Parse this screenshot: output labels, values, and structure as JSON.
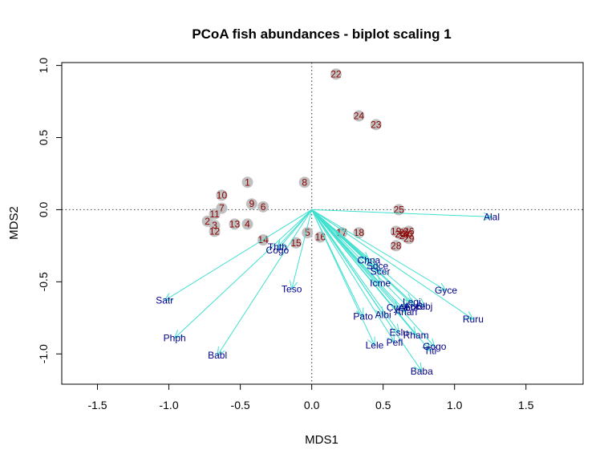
{
  "chart_data": {
    "type": "scatter",
    "title": "PCoA fish abundances - biplot scaling 1",
    "xlabel": "MDS1",
    "ylabel": "MDS2",
    "xlim": [
      -1.75,
      1.9
    ],
    "ylim": [
      -1.21,
      1.02
    ],
    "xticks": [
      "-1.5",
      "-1.0",
      "-0.5",
      "0.0",
      "0.5",
      "1.0",
      "1.5"
    ],
    "yticks": [
      "-1.0",
      "-0.5",
      "0.0",
      "0.5",
      "1.0"
    ],
    "reference_lines": {
      "x": 0,
      "y": 0,
      "style": "dotted"
    },
    "colors": {
      "site_point": "#c0c0c0",
      "site_label": "#8b0000",
      "arrow": "#40e0d0",
      "species_label": "#00008b"
    },
    "sites": [
      {
        "label": "1",
        "x": -0.45,
        "y": 0.19
      },
      {
        "label": "2",
        "x": -0.73,
        "y": -0.08
      },
      {
        "label": "3",
        "x": -0.68,
        "y": -0.11
      },
      {
        "label": "4",
        "x": -0.45,
        "y": -0.1
      },
      {
        "label": "5",
        "x": -0.03,
        "y": -0.16
      },
      {
        "label": "6",
        "x": -0.34,
        "y": 0.02
      },
      {
        "label": "7",
        "x": -0.63,
        "y": 0.01
      },
      {
        "label": "8",
        "x": -0.05,
        "y": 0.19
      },
      {
        "label": "9",
        "x": -0.42,
        "y": 0.04
      },
      {
        "label": "10",
        "x": -0.63,
        "y": 0.1
      },
      {
        "label": "11",
        "x": -0.68,
        "y": -0.03
      },
      {
        "label": "12",
        "x": -0.68,
        "y": -0.15
      },
      {
        "label": "13",
        "x": -0.54,
        "y": -0.1
      },
      {
        "label": "14",
        "x": -0.34,
        "y": -0.21
      },
      {
        "label": "15",
        "x": -0.11,
        "y": -0.23
      },
      {
        "label": "16",
        "x": 0.06,
        "y": -0.19
      },
      {
        "label": "17",
        "x": 0.21,
        "y": -0.16
      },
      {
        "label": "18",
        "x": 0.33,
        "y": -0.16
      },
      {
        "label": "19",
        "x": 0.59,
        "y": -0.15
      },
      {
        "label": "20",
        "x": 0.62,
        "y": -0.17
      },
      {
        "label": "21",
        "x": 0.65,
        "y": -0.16
      },
      {
        "label": "22",
        "x": 0.17,
        "y": 0.94
      },
      {
        "label": "23",
        "x": 0.45,
        "y": 0.59
      },
      {
        "label": "24",
        "x": 0.33,
        "y": 0.65
      },
      {
        "label": "25",
        "x": 0.61,
        "y": 0.0
      },
      {
        "label": "26",
        "x": 0.68,
        "y": -0.15
      },
      {
        "label": "27",
        "x": 0.65,
        "y": -0.18
      },
      {
        "label": "28",
        "x": 0.59,
        "y": -0.25
      },
      {
        "label": "29",
        "x": 0.68,
        "y": -0.2
      },
      {
        "label": "30",
        "x": 0.67,
        "y": -0.17
      }
    ],
    "species": [
      {
        "label": "Cogo",
        "x": -0.24,
        "y": -0.28
      },
      {
        "label": "Satr",
        "x": -1.03,
        "y": -0.63
      },
      {
        "label": "Phph",
        "x": -0.96,
        "y": -0.89
      },
      {
        "label": "Babl",
        "x": -0.66,
        "y": -1.01
      },
      {
        "label": "Thth",
        "x": -0.24,
        "y": -0.26
      },
      {
        "label": "Teso",
        "x": -0.14,
        "y": -0.55
      },
      {
        "label": "Chna",
        "x": 0.4,
        "y": -0.35
      },
      {
        "label": "Pato",
        "x": 0.36,
        "y": -0.74
      },
      {
        "label": "Lele",
        "x": 0.44,
        "y": -0.94
      },
      {
        "label": "Sqce",
        "x": 0.46,
        "y": -0.39
      },
      {
        "label": "Baba",
        "x": 0.77,
        "y": -1.12
      },
      {
        "label": "Albi",
        "x": 0.5,
        "y": -0.73
      },
      {
        "label": "Gogo",
        "x": 0.86,
        "y": -0.95
      },
      {
        "label": "Eslu",
        "x": 0.61,
        "y": -0.85
      },
      {
        "label": "Pefl",
        "x": 0.58,
        "y": -0.92
      },
      {
        "label": "Rham",
        "x": 0.73,
        "y": -0.87
      },
      {
        "label": "Legi",
        "x": 0.7,
        "y": -0.64
      },
      {
        "label": "Scer",
        "x": 0.48,
        "y": -0.43
      },
      {
        "label": "Cyca",
        "x": 0.6,
        "y": -0.68
      },
      {
        "label": "Titi",
        "x": 0.83,
        "y": -0.98
      },
      {
        "label": "Abbr",
        "x": 0.68,
        "y": -0.68
      },
      {
        "label": "Icme",
        "x": 0.48,
        "y": -0.51
      },
      {
        "label": "Acce",
        "x": 0.72,
        "y": -0.67
      },
      {
        "label": "Ruru",
        "x": 1.13,
        "y": -0.76
      },
      {
        "label": "Blbj",
        "x": 0.79,
        "y": -0.67
      },
      {
        "label": "Alal",
        "x": 1.26,
        "y": -0.05
      },
      {
        "label": "Anan",
        "x": 0.66,
        "y": -0.71
      },
      {
        "label": "Gyce",
        "x": 0.94,
        "y": -0.56
      }
    ]
  }
}
